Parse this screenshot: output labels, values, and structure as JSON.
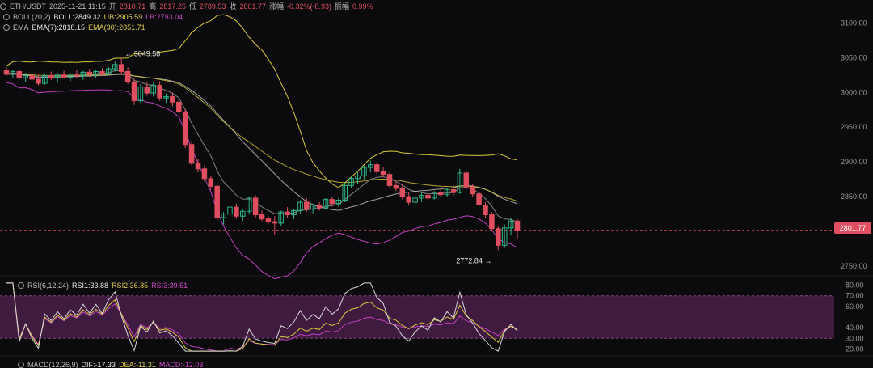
{
  "header": {
    "pair": "ETH/USDT",
    "datetime": "2025-11-21 11:15",
    "open_label": "开",
    "open": "2810.71",
    "high_label": "高",
    "high": "2817.25",
    "low_label": "低",
    "low": "2789.53",
    "close_label": "收",
    "close": "2801.77",
    "change_label": "涨幅",
    "change": "-0.32%(-8.93)",
    "amp_label": "振幅",
    "amp": "0.99%"
  },
  "boll": {
    "name": "BOLL(20,2)",
    "boll": "BOLL:2849.32",
    "ub": "UB:2905.59",
    "lb": "LB:2793.04"
  },
  "ema": {
    "name": "EMA",
    "ema7": "EMA(7):2818.15",
    "ema30": "EMA(30):2851.71"
  },
  "rsi": {
    "name": "RSI(6,12,24)",
    "rsi1": "RSI1:33.88",
    "rsi2": "RSI2:36.85",
    "rsi3": "RSI3:39.51"
  },
  "macd": {
    "name": "MACD(12,26,9)",
    "dif": "DIF:-17.33",
    "dea": "DEA:-11.31",
    "macd": "MACD:-12.03"
  },
  "price_tag": "2801.77",
  "colors": {
    "up": "#2fb58a",
    "down": "#e04f5f",
    "ub": "#d8c83a",
    "lb": "#c23fbf",
    "boll": "#c9c9c9",
    "rsi_band": "#4a1f4a"
  },
  "chart_data": {
    "type": "candlestick",
    "y_ticks": [
      "3100.00",
      "3050.00",
      "3000.00",
      "2950.00",
      "2900.00",
      "2850.00",
      "2800.00",
      "2750.00"
    ],
    "y_range": [
      2742,
      3112
    ],
    "max_annotation": "← 3049.58",
    "min_annotation": "2772.84 →",
    "candles": [
      [
        3032,
        3036,
        3024,
        3026
      ],
      [
        3026,
        3032,
        3020,
        3030
      ],
      [
        3030,
        3034,
        3018,
        3021
      ],
      [
        3021,
        3028,
        3015,
        3024
      ],
      [
        3024,
        3030,
        3017,
        3019
      ],
      [
        3019,
        3025,
        3010,
        3013
      ],
      [
        3013,
        3026,
        3011,
        3024
      ],
      [
        3024,
        3030,
        3018,
        3021
      ],
      [
        3021,
        3027,
        3014,
        3025
      ],
      [
        3025,
        3031,
        3020,
        3022
      ],
      [
        3022,
        3028,
        3016,
        3026
      ],
      [
        3026,
        3032,
        3021,
        3024
      ],
      [
        3024,
        3031,
        3018,
        3029
      ],
      [
        3029,
        3034,
        3022,
        3026
      ],
      [
        3026,
        3032,
        3020,
        3030
      ],
      [
        3030,
        3035,
        3024,
        3027
      ],
      [
        3027,
        3036,
        3025,
        3034
      ],
      [
        3034,
        3044,
        3030,
        3040
      ],
      [
        3040,
        3050,
        3025,
        3030
      ],
      [
        3030,
        3036,
        3012,
        3015
      ],
      [
        3015,
        3020,
        2982,
        2988
      ],
      [
        2988,
        3012,
        2985,
        3008
      ],
      [
        3008,
        3015,
        2995,
        2999
      ],
      [
        2999,
        3014,
        2994,
        3010
      ],
      [
        3010,
        3016,
        2988,
        2992
      ],
      [
        2992,
        2998,
        2985,
        2994
      ],
      [
        2994,
        3000,
        2980,
        2986
      ],
      [
        2986,
        2992,
        2968,
        2972
      ],
      [
        2972,
        2976,
        2920,
        2925
      ],
      [
        2925,
        2930,
        2895,
        2898
      ],
      [
        2898,
        2904,
        2885,
        2890
      ],
      [
        2890,
        2895,
        2872,
        2876
      ],
      [
        2876,
        2880,
        2860,
        2865
      ],
      [
        2865,
        2870,
        2815,
        2820
      ],
      [
        2820,
        2828,
        2810,
        2825
      ],
      [
        2825,
        2840,
        2818,
        2835
      ],
      [
        2835,
        2840,
        2818,
        2822
      ],
      [
        2822,
        2832,
        2815,
        2829
      ],
      [
        2829,
        2850,
        2825,
        2848
      ],
      [
        2848,
        2852,
        2820,
        2824
      ],
      [
        2824,
        2830,
        2815,
        2818
      ],
      [
        2818,
        2822,
        2810,
        2814
      ],
      [
        2814,
        2822,
        2795,
        2812
      ],
      [
        2812,
        2830,
        2808,
        2828
      ],
      [
        2828,
        2835,
        2820,
        2824
      ],
      [
        2824,
        2832,
        2818,
        2830
      ],
      [
        2830,
        2845,
        2826,
        2842
      ],
      [
        2842,
        2848,
        2828,
        2832
      ],
      [
        2832,
        2840,
        2826,
        2838
      ],
      [
        2838,
        2842,
        2830,
        2834
      ],
      [
        2834,
        2848,
        2832,
        2846
      ],
      [
        2846,
        2850,
        2836,
        2840
      ],
      [
        2840,
        2848,
        2836,
        2845
      ],
      [
        2845,
        2870,
        2842,
        2866
      ],
      [
        2866,
        2880,
        2862,
        2876
      ],
      [
        2876,
        2885,
        2868,
        2880
      ],
      [
        2880,
        2895,
        2875,
        2892
      ],
      [
        2892,
        2902,
        2885,
        2896
      ],
      [
        2896,
        2900,
        2882,
        2886
      ],
      [
        2886,
        2892,
        2878,
        2882
      ],
      [
        2882,
        2885,
        2862,
        2866
      ],
      [
        2866,
        2872,
        2858,
        2862
      ],
      [
        2862,
        2868,
        2846,
        2850
      ],
      [
        2850,
        2856,
        2838,
        2842
      ],
      [
        2842,
        2852,
        2836,
        2848
      ],
      [
        2848,
        2856,
        2842,
        2852
      ],
      [
        2852,
        2858,
        2844,
        2848
      ],
      [
        2848,
        2858,
        2846,
        2856
      ],
      [
        2856,
        2862,
        2850,
        2853
      ],
      [
        2853,
        2862,
        2850,
        2860
      ],
      [
        2860,
        2866,
        2852,
        2856
      ],
      [
        2856,
        2890,
        2854,
        2884
      ],
      [
        2884,
        2888,
        2860,
        2864
      ],
      [
        2864,
        2868,
        2850,
        2854
      ],
      [
        2854,
        2858,
        2835,
        2838
      ],
      [
        2838,
        2842,
        2820,
        2824
      ],
      [
        2824,
        2828,
        2800,
        2804
      ],
      [
        2804,
        2808,
        2773,
        2780
      ],
      [
        2780,
        2810,
        2776,
        2805
      ],
      [
        2805,
        2820,
        2795,
        2815
      ],
      [
        2815,
        2818,
        2790,
        2802
      ]
    ],
    "rsi_axis": [
      "80.00",
      "70.00",
      "60.00",
      "40.00",
      "30.00",
      "20.00"
    ],
    "rsi_range": [
      15,
      85
    ],
    "rsi_band": [
      30,
      70
    ]
  }
}
